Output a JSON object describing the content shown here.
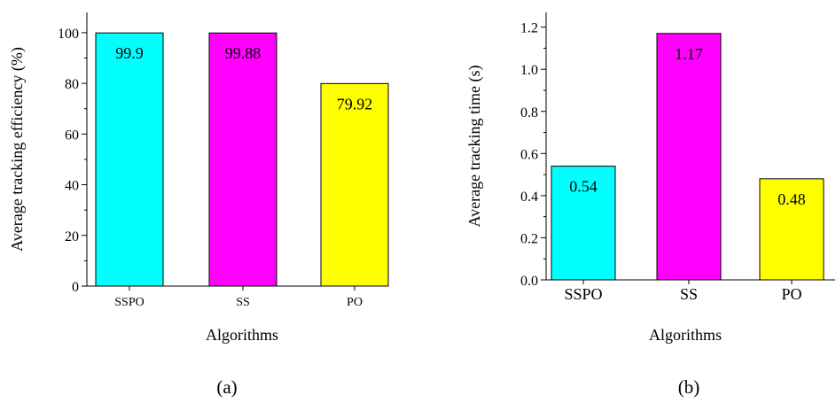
{
  "figure_labels": [
    "(a)",
    "(b)"
  ],
  "chart_data": [
    {
      "type": "bar",
      "categories": [
        "SSPO",
        "SS",
        "PO"
      ],
      "values": [
        99.9,
        99.88,
        79.92
      ],
      "data_labels": [
        "99.9",
        "99.88",
        "79.92"
      ],
      "colors": [
        "#00ffff",
        "#ff00ff",
        "#ffff00"
      ],
      "xlabel": "Algorithms",
      "ylabel": "Average tracking efficiency (%)",
      "ylim": [
        0,
        108
      ],
      "yticks": [
        0,
        20,
        40,
        60,
        80,
        100
      ],
      "ytick_labels": [
        "0",
        "20",
        "40",
        "60",
        "80",
        "100"
      ],
      "grid": false
    },
    {
      "type": "bar",
      "categories": [
        "SSPO",
        "SS",
        "PO"
      ],
      "values": [
        0.54,
        1.17,
        0.48
      ],
      "data_labels": [
        "0.54",
        "1.17",
        "0.48"
      ],
      "colors": [
        "#00ffff",
        "#ff00ff",
        "#ffff00"
      ],
      "xlabel": "Algorithms",
      "ylabel": "Average tracking time (s)",
      "ylim": [
        0,
        1.27
      ],
      "yticks": [
        0,
        0.2,
        0.4,
        0.6,
        0.8,
        1.0,
        1.2
      ],
      "ytick_labels": [
        "0.0",
        "0.2",
        "0.4",
        "0.6",
        "0.8",
        "1.0",
        "1.2"
      ],
      "grid": false
    }
  ]
}
